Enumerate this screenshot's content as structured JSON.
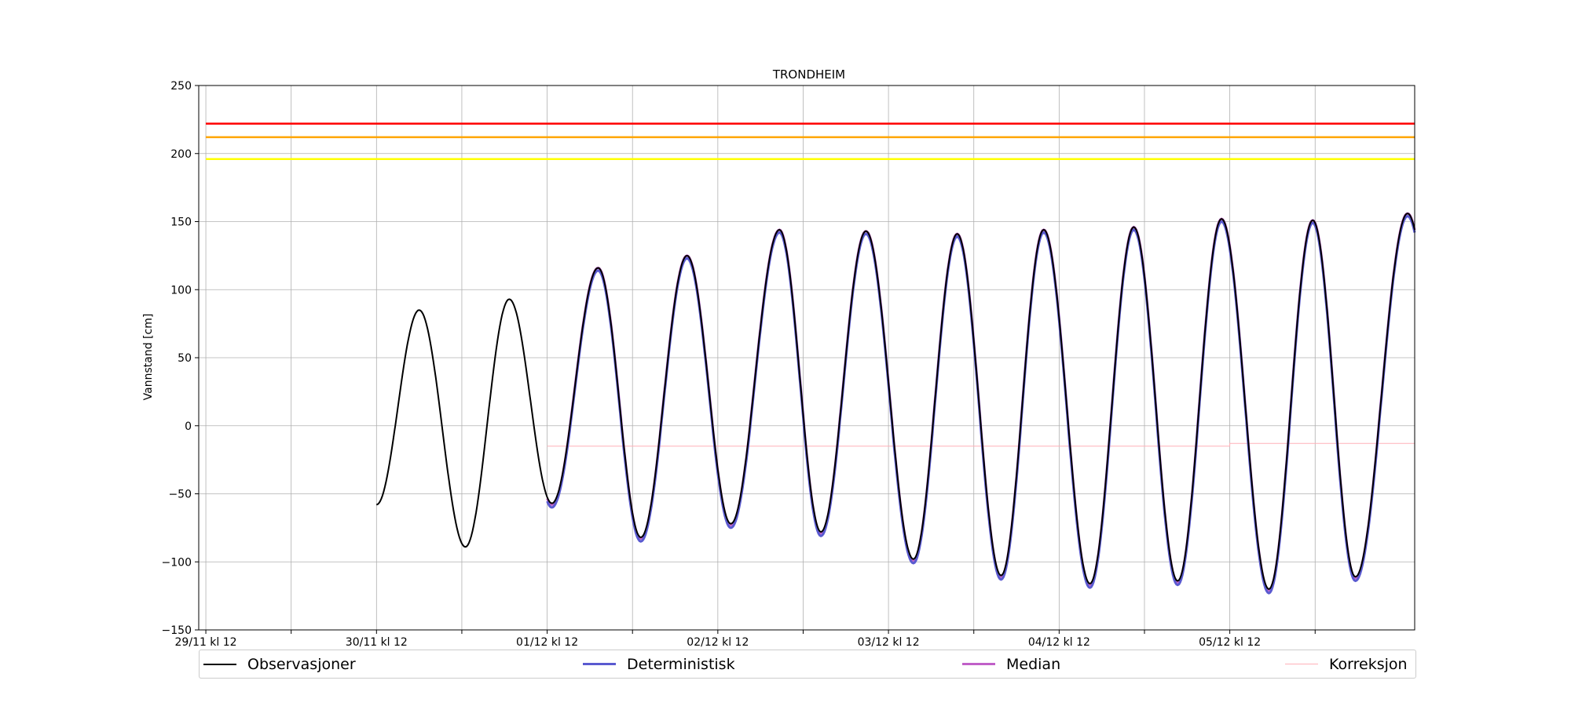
{
  "chart_data": {
    "type": "line",
    "title": "TRONDHEIM",
    "xlabel": "",
    "ylabel": "Vannstand [cm]",
    "ylim": [
      -150,
      250
    ],
    "xlim": [
      "2023-11-29T11:00",
      "2023-12-06T14:00"
    ],
    "yticks": [
      -150,
      -100,
      -50,
      0,
      50,
      100,
      150,
      200,
      250
    ],
    "xticks_labeled": [
      "29/11 kl 12",
      "30/11 kl 12",
      "01/12 kl 12",
      "02/12 kl 12",
      "03/12 kl 12",
      "04/12 kl 12",
      "05/12 kl 12"
    ],
    "xticks_labeled_times": [
      "2023-11-29T12:00",
      "2023-11-30T12:00",
      "2023-12-01T12:00",
      "2023-12-02T12:00",
      "2023-12-03T12:00",
      "2023-12-04T12:00",
      "2023-12-05T12:00"
    ],
    "xticks_minor_times": [
      "2023-11-30T00:00",
      "2023-12-01T00:00",
      "2023-12-02T00:00",
      "2023-12-03T00:00",
      "2023-12-04T00:00",
      "2023-12-05T00:00",
      "2023-12-06T00:00"
    ],
    "grid": true,
    "legend_position": "bottom",
    "thresholds": [
      {
        "value": 222,
        "color": "#ff0000"
      },
      {
        "value": 212,
        "color": "#ffa500"
      },
      {
        "value": 196,
        "color": "#ffff00"
      }
    ],
    "tide": {
      "observations": {
        "start": "2023-11-30T12:00",
        "end": "2023-12-06T14:00",
        "points": [
          {
            "t": "2023-11-30T12:00",
            "v": -58
          },
          {
            "t": "2023-11-30T18:00",
            "v": 85
          },
          {
            "t": "2023-12-01T00:30",
            "v": -89
          },
          {
            "t": "2023-12-01T06:40",
            "v": 93
          },
          {
            "t": "2023-12-01T12:40",
            "v": -57
          },
          {
            "t": "2023-12-01T19:10",
            "v": 116
          },
          {
            "t": "2023-12-02T01:10",
            "v": -82
          },
          {
            "t": "2023-12-02T07:40",
            "v": 125
          },
          {
            "t": "2023-12-02T13:50",
            "v": -72
          },
          {
            "t": "2023-12-02T20:40",
            "v": 144
          },
          {
            "t": "2023-12-03T02:30",
            "v": -78
          },
          {
            "t": "2023-12-03T08:50",
            "v": 143
          },
          {
            "t": "2023-12-03T15:30",
            "v": -98
          },
          {
            "t": "2023-12-03T21:40",
            "v": 141
          },
          {
            "t": "2023-12-04T03:50",
            "v": -110
          },
          {
            "t": "2023-12-04T09:50",
            "v": 144
          },
          {
            "t": "2023-12-04T16:20",
            "v": -116
          },
          {
            "t": "2023-12-04T22:30",
            "v": 146
          },
          {
            "t": "2023-12-05T04:40",
            "v": -114
          },
          {
            "t": "2023-12-05T10:50",
            "v": 152
          },
          {
            "t": "2023-12-05T17:30",
            "v": -120
          },
          {
            "t": "2023-12-05T23:40",
            "v": 151
          },
          {
            "t": "2023-12-06T05:40",
            "v": -111
          },
          {
            "t": "2023-12-06T13:00",
            "v": 156
          }
        ]
      },
      "forecast": {
        "start": "2023-12-01T12:00",
        "end": "2023-12-06T14:00"
      }
    },
    "series": [
      {
        "name": "Observasjoner",
        "color": "#000000",
        "values_ref": "tide.observations"
      },
      {
        "name": "Deterministisk",
        "color": "#5a5ad0",
        "values_ref": "tide.forecast",
        "offset": {
          "low": -3,
          "high": -2
        }
      },
      {
        "name": "Median",
        "color": "#c060c8",
        "values_ref": "tide.forecast",
        "offset": {
          "low": -1,
          "high": 0
        }
      },
      {
        "name": "Korreksjon",
        "color": "#ffb0b8",
        "values": [
          {
            "t": "2023-12-01T12:00",
            "v": -15
          },
          {
            "t": "2023-12-05T12:00",
            "v": -15
          },
          {
            "t": "2023-12-05T12:00",
            "v": -13
          },
          {
            "t": "2023-12-06T14:00",
            "v": -13
          }
        ]
      }
    ]
  }
}
